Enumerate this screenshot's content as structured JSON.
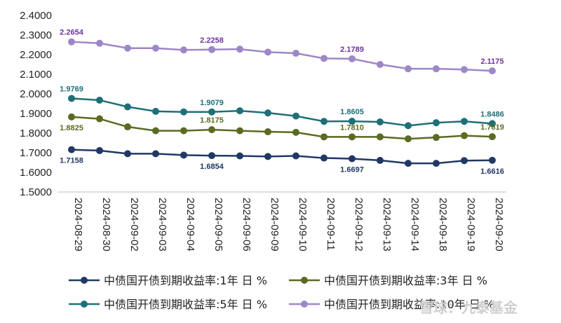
{
  "chart_data": {
    "type": "line",
    "title": "",
    "xlabel": "",
    "ylabel": "",
    "ylim": [
      1.5,
      2.4
    ],
    "ytick_step": 0.1,
    "ytick_labels": [
      "1.5000",
      "1.6000",
      "1.7000",
      "1.8000",
      "1.9000",
      "2.0000",
      "2.1000",
      "2.2000",
      "2.3000",
      "2.4000"
    ],
    "grid": false,
    "legend_position": "bottom",
    "categories": [
      "2024-08-29",
      "2024-08-30",
      "2024-09-02",
      "2024-09-03",
      "2024-09-04",
      "2024-09-05",
      "2024-09-06",
      "2024-09-09",
      "2024-09-10",
      "2024-09-11",
      "2024-09-12",
      "2024-09-13",
      "2024-09-14",
      "2024-09-18",
      "2024-09-19",
      "2024-09-20"
    ],
    "series": [
      {
        "name": "中债国开债到期收益率:1年日%",
        "legend_label": "中债国开债到期收益率:1年 日 %",
        "color": "#203864",
        "values": [
          1.7158,
          1.711,
          1.695,
          1.695,
          1.688,
          1.6854,
          1.684,
          1.681,
          1.684,
          1.673,
          1.6697,
          1.661,
          1.646,
          1.646,
          1.66,
          1.6616
        ],
        "labels": [
          {
            "index": 0,
            "text": "1.7158",
            "pos": "below"
          },
          {
            "index": 5,
            "text": "1.6854",
            "pos": "below"
          },
          {
            "index": 10,
            "text": "1.6697",
            "pos": "below"
          },
          {
            "index": 15,
            "text": "1.6616",
            "pos": "below"
          }
        ]
      },
      {
        "name": "中债国开债到期收益率:3年日%",
        "legend_label": "中债国开债到期收益率:3年 日 %",
        "color": "#5a6b22",
        "values": [
          1.8825,
          1.873,
          1.832,
          1.812,
          1.812,
          1.8175,
          1.812,
          1.807,
          1.804,
          1.781,
          1.781,
          1.781,
          1.771,
          1.778,
          1.787,
          1.7819
        ],
        "labels": [
          {
            "index": 0,
            "text": "1.8825",
            "pos": "below"
          },
          {
            "index": 5,
            "text": "1.8175",
            "pos": "above"
          },
          {
            "index": 10,
            "text": "1.7810",
            "pos": "above"
          },
          {
            "index": 15,
            "text": "1.7819",
            "pos": "above"
          }
        ]
      },
      {
        "name": "中债国开债到期收益率:5年日%",
        "legend_label": "中债国开债到期收益率:5年 日 %",
        "color": "#1f6f78",
        "values": [
          1.9769,
          1.968,
          1.934,
          1.911,
          1.908,
          1.9079,
          1.914,
          1.903,
          1.887,
          1.86,
          1.8605,
          1.857,
          1.838,
          1.853,
          1.86,
          1.8486
        ],
        "labels": [
          {
            "index": 0,
            "text": "1.9769",
            "pos": "above"
          },
          {
            "index": 5,
            "text": "1.9079",
            "pos": "above"
          },
          {
            "index": 10,
            "text": "1.8605",
            "pos": "above"
          },
          {
            "index": 15,
            "text": "1.8486",
            "pos": "above"
          }
        ]
      },
      {
        "name": "中债国开债到期收益率:10年日%",
        "legend_label": "中债国开债到期收益率:10年 日 %",
        "color": "#7030a0",
        "marker_color": "#9e87c7",
        "values": [
          2.2654,
          2.258,
          2.233,
          2.233,
          2.224,
          2.2258,
          2.228,
          2.213,
          2.207,
          2.181,
          2.1789,
          2.15,
          2.128,
          2.128,
          2.124,
          2.1175
        ],
        "labels": [
          {
            "index": 0,
            "text": "2.2654",
            "pos": "above"
          },
          {
            "index": 5,
            "text": "2.2258",
            "pos": "above"
          },
          {
            "index": 10,
            "text": "2.1789",
            "pos": "above"
          },
          {
            "index": 15,
            "text": "2.1175",
            "pos": "above"
          }
        ]
      }
    ]
  },
  "watermark": "雪球：九泰基金"
}
